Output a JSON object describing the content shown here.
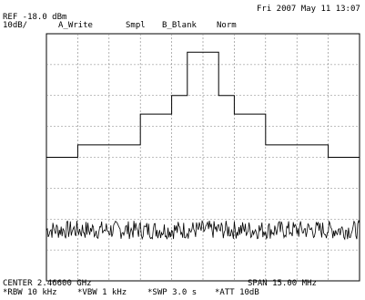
{
  "header": {
    "datetime": "Fri 2007 May 11 13:07",
    "ref_level": "REF -18.0 dBm",
    "scale": "10dB/",
    "trace_mode": "A_Write",
    "sample_mode": "Smpl",
    "trace_b": "B_Blank",
    "detector": "Norm"
  },
  "footer": {
    "center": "CENTER 2.46600 GHz",
    "span": "SPAN 15.00 MHz",
    "rbw": "*RBW 10 kHz",
    "vbw": "*VBW 1 kHz",
    "sweep": "*SWP 3.0 s",
    "attenuation": "*ATT 10dB"
  },
  "chart_data": {
    "type": "line",
    "grid": true,
    "grid_divisions": {
      "x": 10,
      "y": 8
    },
    "ylim_dbm": [
      -98,
      -18
    ],
    "xlim_mhz": [
      2458.5,
      2473.5
    ],
    "series": [
      {
        "x": [
          2458.5,
          2460.0,
          2460.0,
          2463.0,
          2463.0,
          2464.5,
          2464.5,
          2465.25,
          2465.25,
          2466.75,
          2466.75,
          2467.5,
          2467.5,
          2469.0,
          2469.0,
          2472.0,
          2472.0,
          2473.5
        ],
        "y": [
          -58,
          -58,
          -54,
          -54,
          -44,
          -44,
          -38,
          -38,
          -24,
          -24,
          -38,
          -38,
          -44,
          -44,
          -54,
          -54,
          -58,
          -58
        ]
      },
      {
        "noise_floor_dbm": -81.5,
        "noise_span_db": 3
      }
    ],
    "colors": {
      "trace": "#000000",
      "grid": "#808080",
      "frame": "#000000",
      "background": "#ffffff"
    }
  }
}
